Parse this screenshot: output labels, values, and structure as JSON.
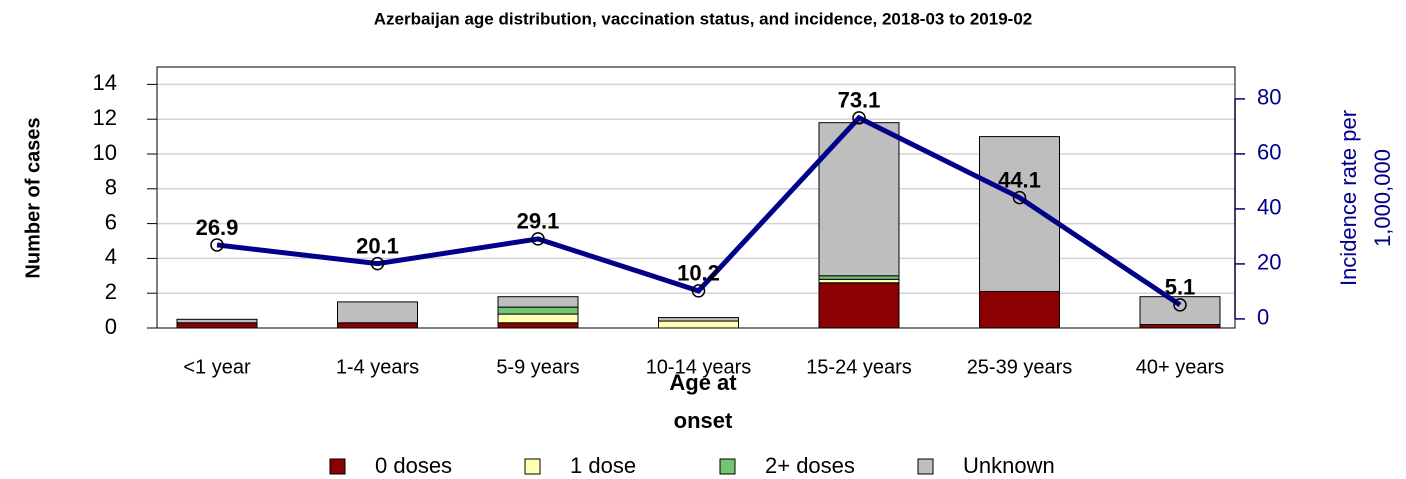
{
  "chart_data": {
    "type": "bar",
    "title": "Azerbaijan age distribution, vaccination status, and incidence, 2018-03 to 2019-02",
    "y_label": "Number of cases",
    "y2_label": [
      "Incidence rate per",
      "1,000,000"
    ],
    "x_label": [
      "Age at",
      "onset"
    ],
    "categories": [
      "<1 year",
      "1-4 years",
      "5-9 years",
      "10-14 years",
      "15-24 years",
      "25-39 years",
      "40+ years"
    ],
    "stacked": true,
    "series": [
      {
        "name": "0 doses",
        "color": "#8b0000",
        "values": [
          0.3,
          0.3,
          0.3,
          0,
          2.6,
          2.1,
          0.2
        ]
      },
      {
        "name": "1 dose",
        "color": "#ffffb3",
        "values": [
          0,
          0,
          0.5,
          0.4,
          0.2,
          0,
          0
        ]
      },
      {
        "name": "2+ doses",
        "color": "#74c476",
        "values": [
          0,
          0,
          0.4,
          0,
          0.2,
          0,
          0
        ]
      },
      {
        "name": "Unknown",
        "color": "#bebebe",
        "values": [
          0.2,
          1.2,
          0.6,
          0.2,
          8.8,
          8.9,
          1.6
        ]
      }
    ],
    "line_series": {
      "type": "line",
      "axis": "y2",
      "color": "#00008b",
      "values": [
        26.9,
        20.1,
        29.1,
        10.2,
        73.1,
        44.1,
        5.1
      ]
    },
    "ylim": [
      0,
      15
    ],
    "yticks": [
      0,
      2,
      4,
      6,
      8,
      10,
      12,
      14
    ],
    "y2lim": [
      -3.3,
      91.6
    ],
    "y2ticks": [
      0,
      20,
      40,
      60,
      80
    ],
    "grid": true,
    "legend": "bottom"
  }
}
